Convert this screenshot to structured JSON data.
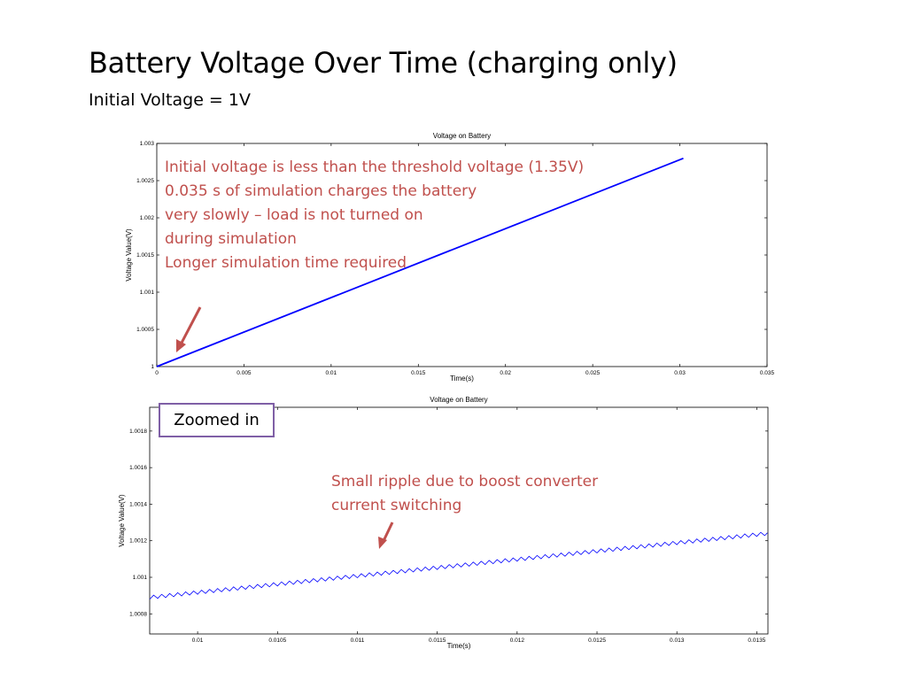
{
  "slide": {
    "title": "Battery Voltage Over Time (charging only)",
    "subtitle": "Initial Voltage = 1V"
  },
  "colors": {
    "series": "#0000ff",
    "annotation": "#c0504d",
    "zoom_box_border": "#7f5fa6"
  },
  "annotations": {
    "top_chart_lines": [
      "Initial voltage is less than the threshold voltage (1.35V)",
      "0.035 s of simulation charges the battery",
      "very slowly – load is not turned on",
      "during simulation",
      "Longer simulation time required"
    ],
    "zoom_label": "Zoomed in",
    "bottom_chart_lines": [
      "Small ripple due to boost converter",
      "current switching"
    ]
  },
  "chart_data": [
    {
      "type": "line",
      "title": "Voltage on Battery",
      "xlabel": "Time(s)",
      "ylabel": "Voltage Value(V)",
      "xlim": [
        0,
        0.035
      ],
      "ylim": [
        1,
        1.003
      ],
      "xticks": [
        "0",
        "0.005",
        "0.01",
        "0.015",
        "0.02",
        "0.025",
        "0.03",
        "0.035"
      ],
      "yticks": [
        "1",
        "1.0005",
        "1.001",
        "1.0015",
        "1.002",
        "1.0025",
        "1.003"
      ],
      "grid": false,
      "series": [
        {
          "x": [
            0,
            0.0302
          ],
          "y": [
            1.0,
            1.0028
          ]
        }
      ]
    },
    {
      "type": "line",
      "title": "Voltage on Battery",
      "xlabel": "Time(s)",
      "ylabel": "Voltage Value(V)",
      "xlim": [
        0.0097,
        0.01357
      ],
      "ylim": [
        1.00069,
        1.00193
      ],
      "xticks": [
        "0.01",
        "0.0105",
        "0.011",
        "0.0115",
        "0.012",
        "0.0125",
        "0.013",
        "0.0135"
      ],
      "yticks": [
        "1.0008",
        "1.001",
        "1.0012",
        "1.0014",
        "1.0016",
        "1.0018"
      ],
      "grid": false,
      "series": [
        {
          "x": [
            0.0097,
            0.01357
          ],
          "y": [
            1.00089,
            1.00124
          ],
          "ripple_amplitude": 2e-05,
          "ripple_period": 5e-05
        }
      ]
    }
  ]
}
